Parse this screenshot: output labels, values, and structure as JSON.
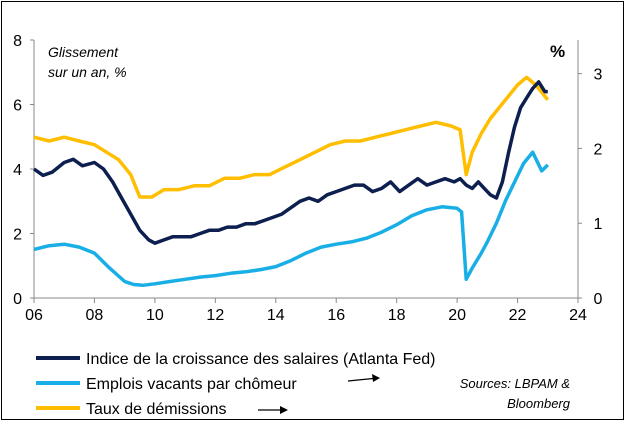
{
  "chart_data": {
    "type": "line",
    "annotation_left": [
      "Glissement",
      "sur un an, %"
    ],
    "annotation_right": "%",
    "x_ticks": [
      "06",
      "08",
      "10",
      "12",
      "14",
      "16",
      "18",
      "20",
      "22",
      "24"
    ],
    "xlim": [
      2006,
      2024
    ],
    "y_left": {
      "ticks": [
        "0",
        "2",
        "4",
        "6",
        "8"
      ],
      "ylim": [
        0,
        8
      ]
    },
    "y_right": {
      "ticks": [
        "0",
        "1",
        "2",
        "3"
      ],
      "ylim": [
        0,
        3.45
      ]
    },
    "grid": false,
    "legend_position": "bottom",
    "source": [
      "Sources: LBPAM &",
      "Bloomberg"
    ],
    "series": [
      {
        "name": "Indice de la croissance des salaires (Atlanta Fed)",
        "axis": "left",
        "color": "#0d1f4f",
        "x": [
          2006.0,
          2006.3,
          2006.6,
          2007.0,
          2007.3,
          2007.6,
          2008.0,
          2008.3,
          2008.6,
          2008.9,
          2009.2,
          2009.5,
          2009.8,
          2010.0,
          2010.3,
          2010.6,
          2010.9,
          2011.2,
          2011.5,
          2011.8,
          2012.1,
          2012.4,
          2012.7,
          2013.0,
          2013.3,
          2013.6,
          2013.9,
          2014.2,
          2014.5,
          2014.8,
          2015.1,
          2015.4,
          2015.7,
          2016.0,
          2016.3,
          2016.6,
          2016.9,
          2017.2,
          2017.5,
          2017.8,
          2018.1,
          2018.4,
          2018.7,
          2019.0,
          2019.3,
          2019.6,
          2019.9,
          2020.1,
          2020.3,
          2020.5,
          2020.7,
          2020.9,
          2021.1,
          2021.3,
          2021.5,
          2021.7,
          2021.9,
          2022.1,
          2022.3,
          2022.5,
          2022.7,
          2022.9,
          2023.0
        ],
        "y": [
          4.0,
          3.8,
          3.9,
          4.2,
          4.3,
          4.1,
          4.2,
          4.0,
          3.6,
          3.1,
          2.6,
          2.1,
          1.8,
          1.7,
          1.8,
          1.9,
          1.9,
          1.9,
          2.0,
          2.1,
          2.1,
          2.2,
          2.2,
          2.3,
          2.3,
          2.4,
          2.5,
          2.6,
          2.8,
          3.0,
          3.1,
          3.0,
          3.2,
          3.3,
          3.4,
          3.5,
          3.5,
          3.3,
          3.4,
          3.6,
          3.3,
          3.5,
          3.7,
          3.5,
          3.6,
          3.7,
          3.6,
          3.7,
          3.5,
          3.4,
          3.6,
          3.4,
          3.2,
          3.1,
          3.6,
          4.5,
          5.3,
          5.9,
          6.2,
          6.5,
          6.7,
          6.4,
          6.4
        ]
      },
      {
        "name": "Emplois vacants par chômeur",
        "axis": "right",
        "color": "#19afe6",
        "x": [
          2006.0,
          2006.5,
          2007.0,
          2007.5,
          2008.0,
          2008.5,
          2009.0,
          2009.3,
          2009.6,
          2010.0,
          2010.5,
          2011.0,
          2011.5,
          2012.0,
          2012.5,
          2013.0,
          2013.5,
          2014.0,
          2014.5,
          2015.0,
          2015.5,
          2016.0,
          2016.5,
          2017.0,
          2017.5,
          2018.0,
          2018.5,
          2019.0,
          2019.5,
          2020.0,
          2020.15,
          2020.3,
          2020.5,
          2020.8,
          2021.0,
          2021.3,
          2021.6,
          2021.9,
          2022.2,
          2022.5,
          2022.8,
          2023.0
        ],
        "y": [
          0.65,
          0.7,
          0.72,
          0.68,
          0.6,
          0.4,
          0.22,
          0.18,
          0.17,
          0.19,
          0.22,
          0.25,
          0.28,
          0.3,
          0.33,
          0.35,
          0.38,
          0.42,
          0.5,
          0.6,
          0.68,
          0.72,
          0.75,
          0.8,
          0.88,
          0.98,
          1.1,
          1.18,
          1.22,
          1.2,
          1.15,
          0.25,
          0.4,
          0.6,
          0.75,
          1.0,
          1.3,
          1.55,
          1.8,
          1.95,
          1.7,
          1.78
        ]
      },
      {
        "name": "Taux de démissions",
        "axis": "right",
        "color": "#ffbe00",
        "x": [
          2006.0,
          2006.5,
          2007.0,
          2007.5,
          2008.0,
          2008.4,
          2008.8,
          2009.2,
          2009.5,
          2009.9,
          2010.3,
          2010.8,
          2011.3,
          2011.8,
          2012.3,
          2012.8,
          2013.3,
          2013.8,
          2014.3,
          2014.8,
          2015.3,
          2015.8,
          2016.3,
          2016.8,
          2017.3,
          2017.8,
          2018.3,
          2018.8,
          2019.3,
          2019.8,
          2020.1,
          2020.3,
          2020.5,
          2020.8,
          2021.1,
          2021.4,
          2021.7,
          2022.0,
          2022.3,
          2022.6,
          2022.9,
          2023.0
        ],
        "y": [
          2.15,
          2.1,
          2.15,
          2.1,
          2.05,
          1.95,
          1.85,
          1.65,
          1.35,
          1.35,
          1.45,
          1.45,
          1.5,
          1.5,
          1.6,
          1.6,
          1.65,
          1.65,
          1.75,
          1.85,
          1.95,
          2.05,
          2.1,
          2.1,
          2.15,
          2.2,
          2.25,
          2.3,
          2.35,
          2.3,
          2.25,
          1.65,
          1.95,
          2.2,
          2.4,
          2.55,
          2.7,
          2.85,
          2.95,
          2.85,
          2.7,
          2.65
        ]
      }
    ]
  }
}
